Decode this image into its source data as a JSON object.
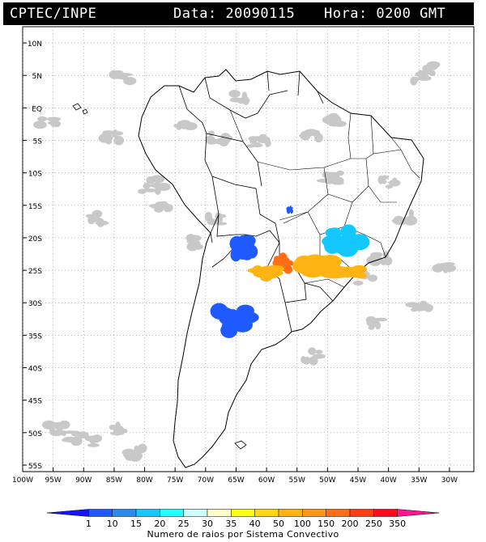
{
  "header": {
    "source": "CPTEC/INPE",
    "date_label": "Data: 20090115",
    "time_label": "Hora: 0200 GMT"
  },
  "axes": {
    "lat_labels": [
      "10N",
      "5N",
      "EQ",
      "5S",
      "10S",
      "15S",
      "20S",
      "25S",
      "30S",
      "35S",
      "40S",
      "45S",
      "50S",
      "55S"
    ],
    "lat_values": [
      10,
      5,
      0,
      -5,
      -10,
      -15,
      -20,
      -25,
      -30,
      -35,
      -40,
      -45,
      -50,
      -55
    ],
    "lon_labels": [
      "100W",
      "95W",
      "90W",
      "85W",
      "80W",
      "75W",
      "70W",
      "65W",
      "60W",
      "55W",
      "50W",
      "45W",
      "40W",
      "35W",
      "30W"
    ],
    "lon_values": [
      -100,
      -95,
      -90,
      -85,
      -80,
      -75,
      -70,
      -65,
      -60,
      -55,
      -50,
      -45,
      -40,
      -35,
      -30
    ],
    "lon_range": [
      -100,
      -26
    ],
    "lat_range": [
      -56,
      12.5
    ],
    "grid": "dotted"
  },
  "legend": {
    "caption": "Numero de raios por Sistema Convectivo",
    "ticks": [
      "1",
      "10",
      "15",
      "20",
      "25",
      "30",
      "35",
      "40",
      "50",
      "100",
      "150",
      "200",
      "250",
      "350"
    ],
    "colors": [
      "#1414ff",
      "#1e5aff",
      "#2b8cf0",
      "#14c8ff",
      "#22ffff",
      "#cfffff",
      "#ffffcc",
      "#ffff14",
      "#ffd814",
      "#ffb414",
      "#ff9614",
      "#ff6e14",
      "#ff3c14",
      "#ff0a1e",
      "#ff1496"
    ]
  },
  "systems": [
    {
      "name": "system-paraguay-north",
      "lon": -63.8,
      "lat": -21.8,
      "color": "#1e5aff"
    },
    {
      "name": "system-minas-gerais",
      "lon": -47.0,
      "lat": -20.2,
      "color": "#14c8ff"
    },
    {
      "name": "system-central-brazil",
      "lon": -56.2,
      "lat": -15.7,
      "color": "#1e5aff"
    },
    {
      "name": "system-argentina-central",
      "lon": -65.5,
      "lat": -32.8,
      "color": "#1e5aff"
    },
    {
      "name": "system-parana",
      "lon": -51.5,
      "lat": -24.8,
      "color": "#ffb414"
    },
    {
      "name": "system-paraguay-south",
      "lon": -57.5,
      "lat": -24.0,
      "color": "#ff6e14"
    },
    {
      "name": "system-chaco",
      "lon": -60.5,
      "lat": -25.5,
      "color": "#ffb414"
    },
    {
      "name": "system-sao-paulo",
      "lon": -45.8,
      "lat": -25.3,
      "color": "#ffb414"
    }
  ]
}
